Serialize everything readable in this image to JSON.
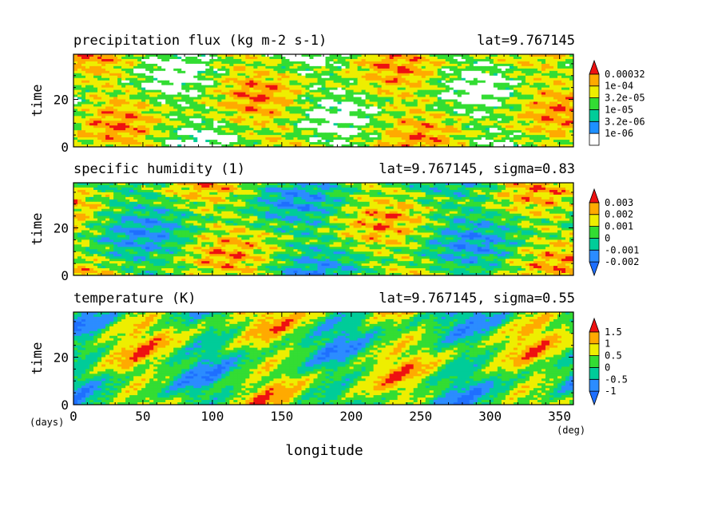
{
  "chart_data": [
    {
      "type": "heatmap",
      "title": "precipitation flux (kg m-2 s-1)",
      "subtitle": "lat=9.767145",
      "ylabel": "time",
      "xlim": [
        0,
        360
      ],
      "ylim": [
        0,
        39
      ],
      "yticks": [
        "0",
        "20"
      ],
      "colorbar": {
        "labels": [
          "1e-06",
          "3.2e-06",
          "1e-05",
          "3.2e-05",
          "1e-04",
          "0.00032"
        ],
        "colors": [
          "#ffffff",
          "#1e90ff",
          "#00cc99",
          "#33dd33",
          "#eeee00",
          "#ffaa00",
          "#ee1111"
        ],
        "extend": "max"
      },
      "pattern": {
        "slope": -0.18,
        "band": 0.1,
        "white_threshold": 0.35
      }
    },
    {
      "type": "heatmap",
      "title": "specific humidity (1)",
      "subtitle": "lat=9.767145, sigma=0.83",
      "ylabel": "time",
      "xlim": [
        0,
        360
      ],
      "ylim": [
        0,
        39
      ],
      "yticks": [
        "0",
        "20"
      ],
      "colorbar": {
        "labels": [
          "-0.002",
          "-0.001",
          "0",
          "0.001",
          "0.002",
          "0.003"
        ],
        "colors": [
          "#1e6fff",
          "#2b8cff",
          "#00cc99",
          "#33dd33",
          "#eeee00",
          "#ffaa00",
          "#ee1111"
        ],
        "extend": "both"
      },
      "pattern": {
        "slope": -0.14,
        "band": 0.06,
        "white_threshold": -1
      }
    },
    {
      "type": "heatmap",
      "title": "temperature (K)",
      "subtitle": "lat=9.767145, sigma=0.55",
      "ylabel": "time",
      "xlim": [
        0,
        360
      ],
      "ylim": [
        0,
        39
      ],
      "yticks": [
        "0",
        "20"
      ],
      "colorbar": {
        "labels": [
          "-1",
          "-0.5",
          "0",
          "0.5",
          "1",
          "1.5"
        ],
        "colors": [
          "#1e6fff",
          "#2b8cff",
          "#00cc99",
          "#33dd33",
          "#eeee00",
          "#ffaa00",
          "#ee1111"
        ],
        "extend": "both"
      },
      "pattern": {
        "slope": 0.05,
        "band": 0.16,
        "white_threshold": -1
      }
    }
  ],
  "xaxis": {
    "label": "longitude",
    "ticks": [
      "0",
      "50",
      "100",
      "150",
      "200",
      "250",
      "300",
      "350"
    ],
    "left_unit": "(days)",
    "right_unit": "(deg)"
  }
}
